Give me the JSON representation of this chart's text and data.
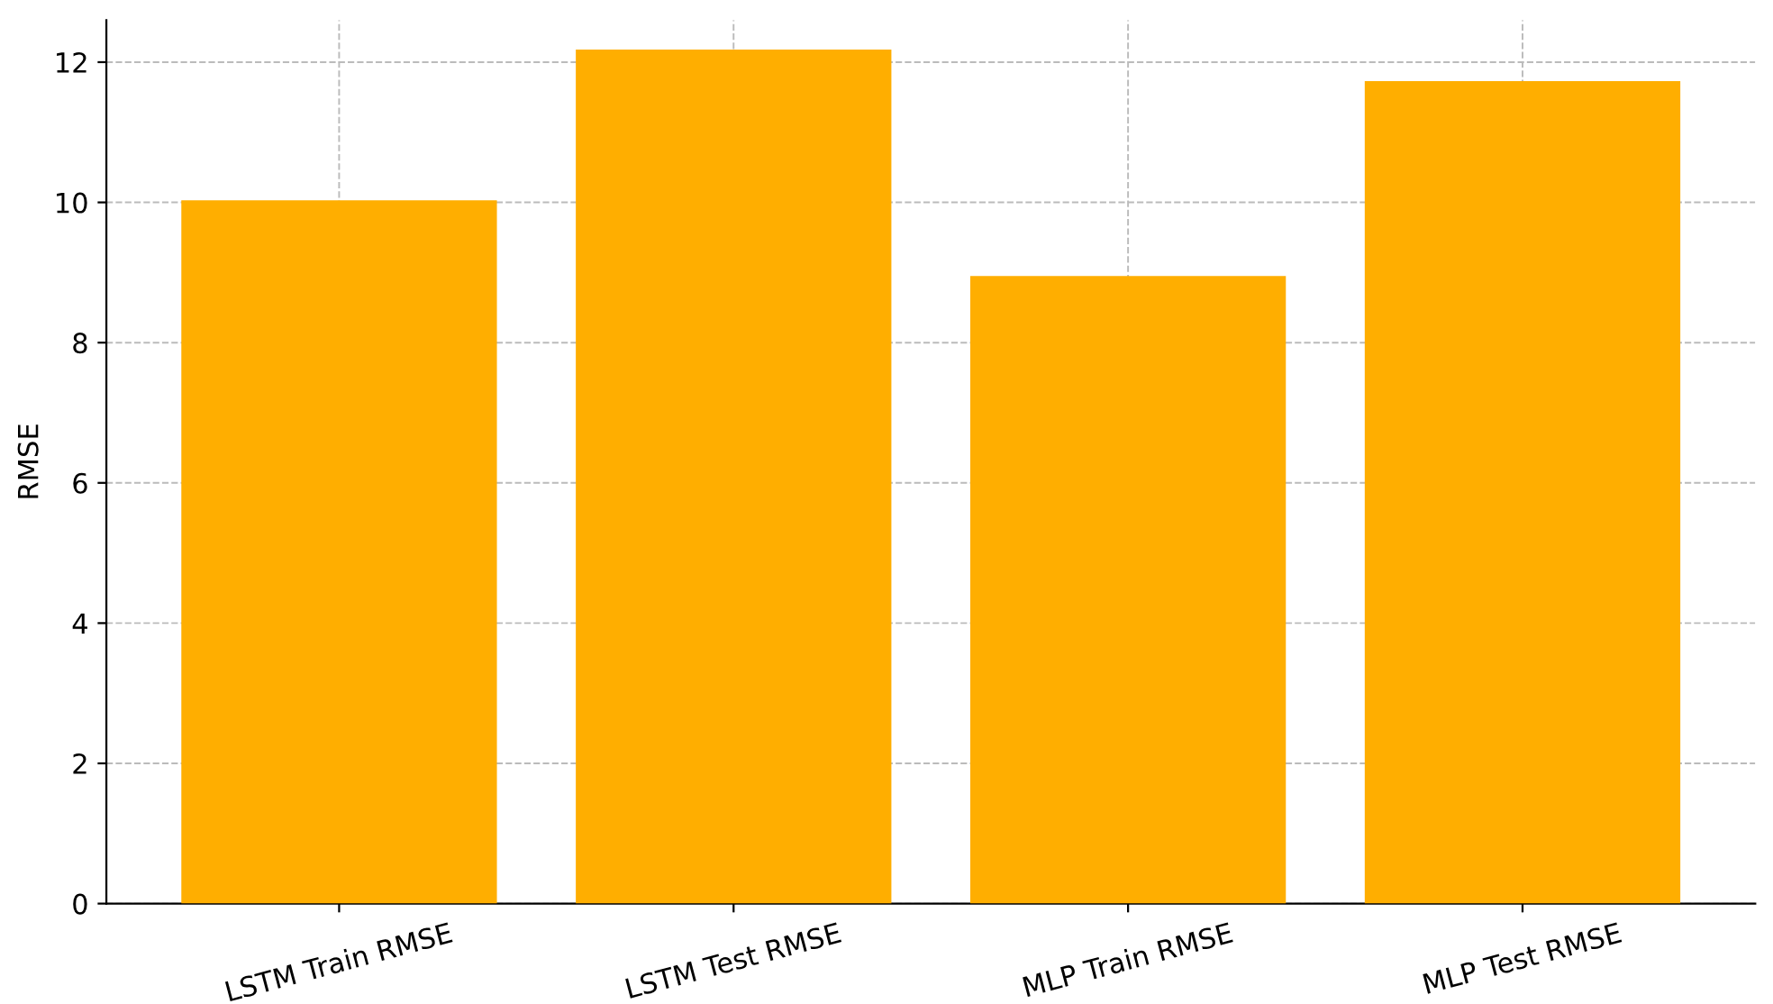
{
  "chart_data": {
    "type": "bar",
    "ylabel": "RMSE",
    "categories": [
      "LSTM Train RMSE",
      "LSTM Test RMSE",
      "MLP Train RMSE",
      "MLP Test RMSE"
    ],
    "values": [
      10.03,
      12.18,
      8.95,
      11.73
    ],
    "color": "#ffae00",
    "ylim": [
      0,
      12.6
    ],
    "yticks": [
      0,
      2,
      4,
      6,
      8,
      10,
      12
    ],
    "grid": true
  }
}
